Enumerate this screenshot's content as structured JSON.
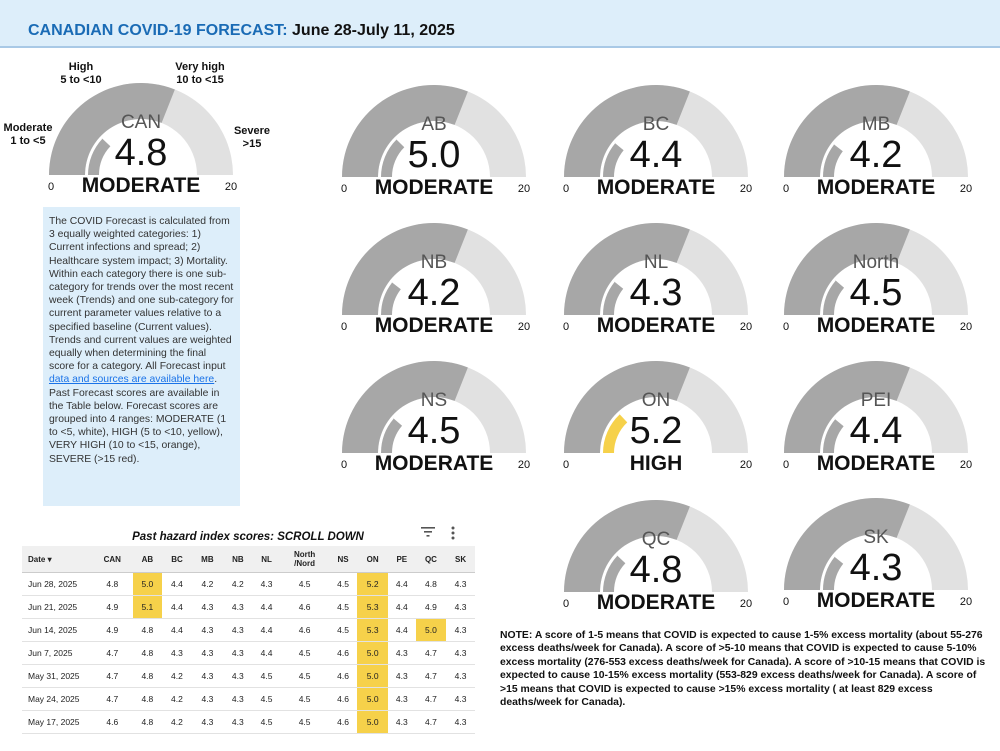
{
  "header": {
    "title": "CANADIAN COVID-19 FORECAST:",
    "date_range": "June 28-July 11, 2025"
  },
  "colors": {
    "moderate": "#ffffff",
    "high": "#f6d14a",
    "very_high": "#f5a623",
    "severe": "#d93025",
    "gauge_track": "#e1e1e1",
    "gauge_band": "#a7a7a7"
  },
  "range_labels": [
    {
      "name": "High",
      "range": "5 to <10"
    },
    {
      "name": "Very high",
      "range": "10 to <15"
    },
    {
      "name": "Moderate",
      "range": "1 to <5"
    },
    {
      "name": "Severe",
      "range": ">15"
    }
  ],
  "description": {
    "before_link": "The COVID Forecast is calculated from 3 equally weighted categories: 1) Current infections and spread; 2) Healthcare system impact; 3) Mortality. Within each category there is one sub-category for trends over the most recent week (Trends) and one sub-category for current parameter values relative to a specified baseline (Current values). Trends and current values are weighted equally when determining the final score for a category. All Forecast input ",
    "link": "data and sources are available here",
    "after_link": ". Past Forecast scores are available in the Table below. Forecast scores are grouped into 4 ranges: MODERATE (1 to <5, white), HIGH (5 to <10, yellow), VERY HIGH (10 to <15, orange), SEVERE (>15 red)."
  },
  "chart_data": [
    {
      "type": "gauge",
      "region": "CAN",
      "value": 4.8,
      "display": "4.8",
      "level": "MODERATE",
      "min": 0,
      "max": 20,
      "min_label": "0",
      "max_label": "20"
    },
    {
      "type": "gauge",
      "region": "AB",
      "value": 5.0,
      "display": "5.0",
      "level": "MODERATE",
      "min": 0,
      "max": 20,
      "min_label": "0",
      "max_label": "20"
    },
    {
      "type": "gauge",
      "region": "BC",
      "value": 4.4,
      "display": "4.4",
      "level": "MODERATE",
      "min": 0,
      "max": 20,
      "min_label": "0",
      "max_label": "20"
    },
    {
      "type": "gauge",
      "region": "MB",
      "value": 4.2,
      "display": "4.2",
      "level": "MODERATE",
      "min": 0,
      "max": 20,
      "min_label": "0",
      "max_label": "20"
    },
    {
      "type": "gauge",
      "region": "NB",
      "value": 4.2,
      "display": "4.2",
      "level": "MODERATE",
      "min": 0,
      "max": 20,
      "min_label": "0",
      "max_label": "20"
    },
    {
      "type": "gauge",
      "region": "NL",
      "value": 4.3,
      "display": "4.3",
      "level": "MODERATE",
      "min": 0,
      "max": 20,
      "min_label": "0",
      "max_label": "20"
    },
    {
      "type": "gauge",
      "region": "North",
      "value": 4.5,
      "display": "4.5",
      "level": "MODERATE",
      "min": 0,
      "max": 20,
      "min_label": "0",
      "max_label": "20"
    },
    {
      "type": "gauge",
      "region": "NS",
      "value": 4.5,
      "display": "4.5",
      "level": "MODERATE",
      "min": 0,
      "max": 20,
      "min_label": "0",
      "max_label": "20"
    },
    {
      "type": "gauge",
      "region": "ON",
      "value": 5.2,
      "display": "5.2",
      "level": "HIGH",
      "min": 0,
      "max": 20,
      "min_label": "0",
      "max_label": "20"
    },
    {
      "type": "gauge",
      "region": "PEI",
      "value": 4.4,
      "display": "4.4",
      "level": "MODERATE",
      "min": 0,
      "max": 20,
      "min_label": "0",
      "max_label": "20"
    },
    {
      "type": "gauge",
      "region": "QC",
      "value": 4.8,
      "display": "4.8",
      "level": "MODERATE",
      "min": 0,
      "max": 20,
      "min_label": "0",
      "max_label": "20"
    },
    {
      "type": "gauge",
      "region": "SK",
      "value": 4.3,
      "display": "4.3",
      "level": "MODERATE",
      "min": 0,
      "max": 20,
      "min_label": "0",
      "max_label": "20"
    },
    {
      "type": "table",
      "title": "Past hazard index scores: SCROLL DOWN",
      "columns": [
        "Date",
        "CAN",
        "AB",
        "BC",
        "MB",
        "NB",
        "NL",
        "North /Nord",
        "NS",
        "ON",
        "PE",
        "QC",
        "SK"
      ],
      "sort_indicator": "▾",
      "rows": [
        {
          "date": "Jun 28, 2025",
          "values": [
            "4.8",
            "5.0",
            "4.4",
            "4.2",
            "4.2",
            "4.3",
            "4.5",
            "4.5",
            "5.2",
            "4.4",
            "4.8",
            "4.3"
          ]
        },
        {
          "date": "Jun 21, 2025",
          "values": [
            "4.9",
            "5.1",
            "4.4",
            "4.3",
            "4.3",
            "4.4",
            "4.6",
            "4.5",
            "5.3",
            "4.4",
            "4.9",
            "4.3"
          ]
        },
        {
          "date": "Jun 14, 2025",
          "values": [
            "4.9",
            "4.8",
            "4.4",
            "4.3",
            "4.3",
            "4.4",
            "4.6",
            "4.5",
            "5.3",
            "4.4",
            "5.0",
            "4.3"
          ]
        },
        {
          "date": "Jun 7, 2025",
          "values": [
            "4.7",
            "4.8",
            "4.3",
            "4.3",
            "4.3",
            "4.4",
            "4.5",
            "4.6",
            "5.0",
            "4.3",
            "4.7",
            "4.3"
          ]
        },
        {
          "date": "May 31, 2025",
          "values": [
            "4.7",
            "4.8",
            "4.2",
            "4.3",
            "4.3",
            "4.5",
            "4.5",
            "4.6",
            "5.0",
            "4.3",
            "4.7",
            "4.3"
          ]
        },
        {
          "date": "May 24, 2025",
          "values": [
            "4.7",
            "4.8",
            "4.2",
            "4.3",
            "4.3",
            "4.5",
            "4.5",
            "4.6",
            "5.0",
            "4.3",
            "4.7",
            "4.3"
          ]
        },
        {
          "date": "May 17, 2025",
          "values": [
            "4.6",
            "4.8",
            "4.2",
            "4.3",
            "4.3",
            "4.5",
            "4.5",
            "4.6",
            "5.0",
            "4.3",
            "4.7",
            "4.3"
          ]
        }
      ]
    }
  ],
  "table_icons": {
    "filter": "filter-icon",
    "more": "more-vert-icon"
  },
  "note": "NOTE: A score of 1-5 means that COVID is expected to cause 1-5% excess mortality (about 55-276 excess deaths/week for Canada). A score of >5-10 means that COVID is expected to cause 5-10% excess mortality (276-553 excess deaths/week for Canada). A score of >10-15 means that COVID is expected to cause 10-15% excess mortality (553-829 excess deaths/week for Canada). A score of >15 means that COVID is expected to cause >15% excess mortality ( at least 829 excess deaths/week for Canada)."
}
